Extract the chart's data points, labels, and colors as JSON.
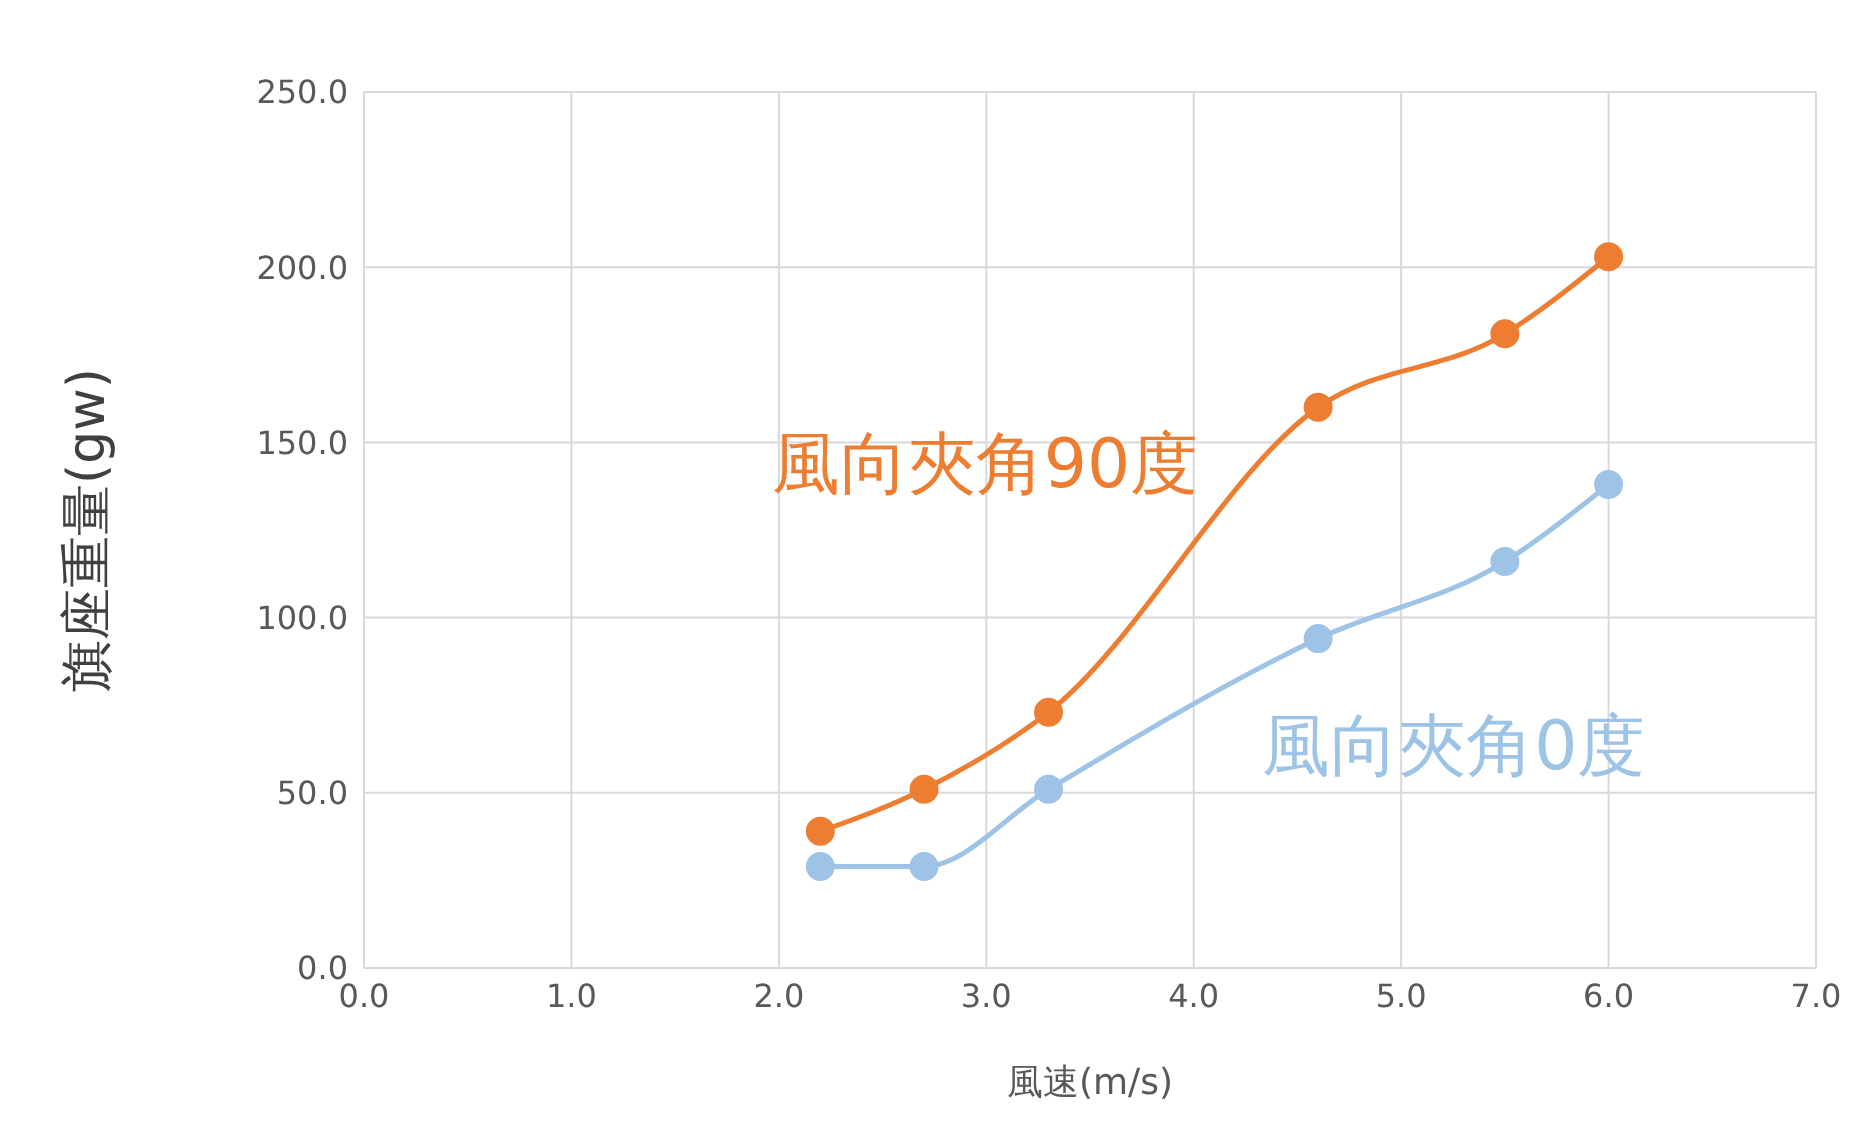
{
  "chart_data": {
    "type": "line",
    "xlabel": "風速(m/s)",
    "ylabel": "旗座重量(gw)",
    "xlim": [
      0,
      7
    ],
    "xticks": [
      {
        "value": 0,
        "label": "0.0"
      },
      {
        "value": 1,
        "label": "1.0"
      },
      {
        "value": 2,
        "label": "2.0"
      },
      {
        "value": 3,
        "label": "3.0"
      },
      {
        "value": 4,
        "label": "4.0"
      },
      {
        "value": 5,
        "label": "5.0"
      },
      {
        "value": 6,
        "label": "6.0"
      },
      {
        "value": 7,
        "label": "7.0"
      }
    ],
    "ylim": [
      0,
      250
    ],
    "yticks": [
      {
        "value": 0,
        "label": "0.0"
      },
      {
        "value": 50,
        "label": "50.0"
      },
      {
        "value": 100,
        "label": "100.0"
      },
      {
        "value": 150,
        "label": "150.0"
      },
      {
        "value": 200,
        "label": "200.0"
      },
      {
        "value": 250,
        "label": "250.0"
      }
    ],
    "x": [
      2.2,
      2.7,
      3.3,
      4.6,
      5.5,
      6.0
    ],
    "series": [
      {
        "name": "風向夾角90度",
        "color": "#ed7d31",
        "values": [
          39,
          51,
          73,
          160,
          181,
          203
        ]
      },
      {
        "name": "風向夾角0度",
        "color": "#9dc3e6",
        "values": [
          29,
          29,
          51,
          94,
          116,
          138
        ]
      }
    ],
    "grid": true,
    "marker": "circle",
    "line_style": "solid"
  }
}
